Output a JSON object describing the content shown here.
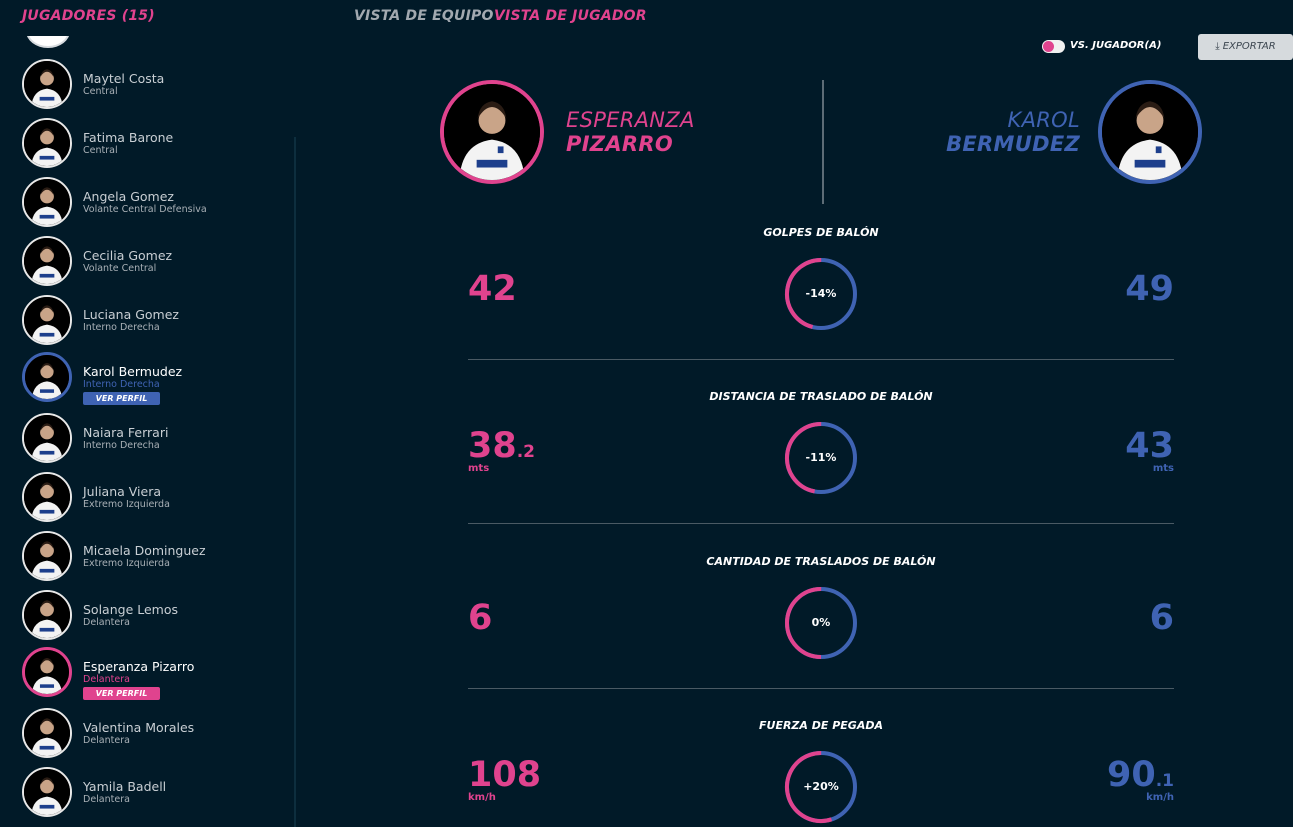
{
  "header": {
    "players_title": "JUGADORES (15)",
    "tab_team": "VISTA DE EQUIPO",
    "tab_player": "VISTA DE JUGADOR"
  },
  "controls": {
    "vs_label": "VS. JUGADOR(A)",
    "export_label": "EXPORTAR",
    "accent_pink": "#e0438e",
    "accent_blue": "#3f63b3"
  },
  "sidebar": {
    "players": [
      {
        "name": "Maytel Costa",
        "position": "Central"
      },
      {
        "name": "Fatima Barone",
        "position": "Central"
      },
      {
        "name": "Angela Gomez",
        "position": "Volante Central Defensiva"
      },
      {
        "name": "Cecilia Gomez",
        "position": "Volante Central"
      },
      {
        "name": "Luciana Gomez",
        "position": "Interno Derecha"
      },
      {
        "name": "Karol Bermudez",
        "position": "Interno Derecha",
        "profile_label": "VER PERFIL"
      },
      {
        "name": "Naiara Ferrari",
        "position": "Interno Derecha"
      },
      {
        "name": "Juliana Viera",
        "position": "Extremo Izquierda"
      },
      {
        "name": "Micaela Dominguez",
        "position": "Extremo Izquierda"
      },
      {
        "name": "Solange Lemos",
        "position": "Delantera"
      },
      {
        "name": "Esperanza Pizarro",
        "position": "Delantera",
        "profile_label": "VER PERFIL"
      },
      {
        "name": "Valentina Morales",
        "position": "Delantera"
      },
      {
        "name": "Yamila Badell",
        "position": "Delantera"
      }
    ]
  },
  "compare": {
    "left": {
      "first": "ESPERANZA",
      "last": "PIZARRO"
    },
    "right": {
      "first": "KAROL",
      "last": "BERMUDEZ"
    }
  },
  "metrics": [
    {
      "title": "GOLPES DE BALÓN",
      "left_int": "42",
      "left_dec": "",
      "left_unit": "",
      "right_int": "49",
      "right_dec": "",
      "right_unit": "",
      "diff": "-14%",
      "left_share": 0.46
    },
    {
      "title": "DISTANCIA DE TRASLADO DE BALÓN",
      "left_int": "38",
      "left_dec": ".2",
      "left_unit": "mts",
      "right_int": "43",
      "right_dec": "",
      "right_unit": "mts",
      "diff": "-11%",
      "left_share": 0.47
    },
    {
      "title": "CANTIDAD DE TRASLADOS DE BALÓN",
      "left_int": "6",
      "left_dec": "",
      "left_unit": "",
      "right_int": "6",
      "right_dec": "",
      "right_unit": "",
      "diff": "0%",
      "left_share": 0.5
    },
    {
      "title": "FUERZA DE PEGADA",
      "left_int": "108",
      "left_dec": "",
      "left_unit": "km/h",
      "right_int": "90",
      "right_dec": ".1",
      "right_unit": "km/h",
      "diff": "+20%",
      "left_share": 0.55
    }
  ]
}
